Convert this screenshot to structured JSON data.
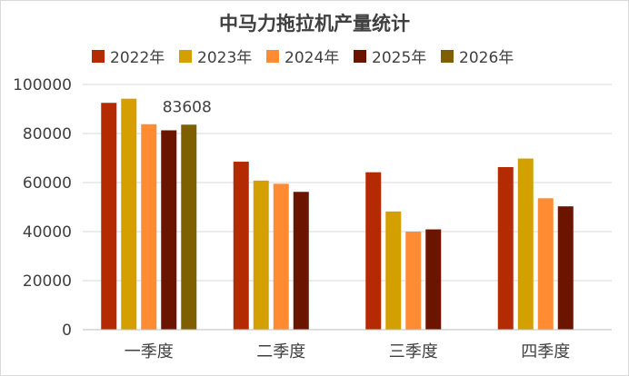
{
  "chart_data": {
    "type": "bar",
    "title": "中马力拖拉机产量统计",
    "categories": [
      "一季度",
      "二季度",
      "三季度",
      "四季度"
    ],
    "series": [
      {
        "name": "2022年",
        "color": "#B42A02",
        "values": [
          92500,
          68500,
          64200,
          66300
        ]
      },
      {
        "name": "2023年",
        "color": "#D4A000",
        "values": [
          94200,
          60800,
          48200,
          69800
        ]
      },
      {
        "name": "2024年",
        "color": "#FF8C33",
        "values": [
          83800,
          59500,
          40000,
          53600
        ]
      },
      {
        "name": "2025年",
        "color": "#6B1400",
        "values": [
          81300,
          56200,
          40900,
          50300
        ]
      },
      {
        "name": "2026年",
        "color": "#7F6000",
        "values": [
          83608,
          null,
          null,
          null
        ]
      }
    ],
    "y_ticks": [
      "0",
      "20000",
      "40000",
      "60000",
      "80000",
      "100000"
    ],
    "ylim": [
      0,
      100000
    ],
    "grid": true,
    "legend_position": "top",
    "data_labels": [
      {
        "series": 4,
        "category": 0,
        "text": "83608"
      }
    ]
  }
}
